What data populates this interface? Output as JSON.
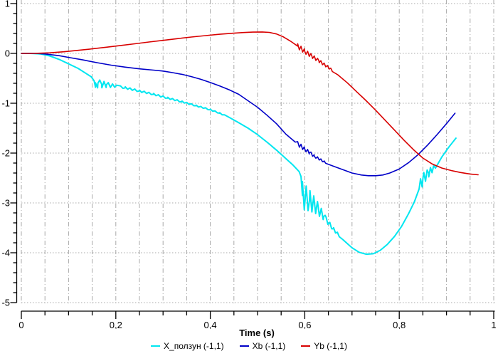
{
  "chart_data": {
    "type": "line",
    "title": "",
    "xlabel": "Time (s)",
    "background": "#ffffff",
    "axis_color": "#000000",
    "grid_color": "#a9a9a9",
    "legend_position": "bottom-center",
    "grid": {
      "vertical_style": "dash-dot",
      "horizontal_style": "dotted"
    },
    "x_axis": {
      "range": [
        0,
        1
      ],
      "minor_step": 0.05,
      "major_ticks": [
        {
          "v": 0,
          "label": "0"
        },
        {
          "v": 0.2,
          "label": "0,2"
        },
        {
          "v": 0.4,
          "label": "0,4"
        },
        {
          "v": 0.6,
          "label": "0,6"
        },
        {
          "v": 0.8,
          "label": "0,8"
        },
        {
          "v": 1,
          "label": "1"
        }
      ]
    },
    "y_axis": {
      "range": [
        -5,
        1
      ],
      "minor_step": 0.2,
      "major_ticks": [
        {
          "v": 1,
          "label": "1"
        },
        {
          "v": 0,
          "label": "0"
        },
        {
          "v": -1,
          "label": "-1"
        },
        {
          "v": -2,
          "label": "-2"
        },
        {
          "v": -3,
          "label": "-3"
        },
        {
          "v": -4,
          "label": "-4"
        },
        {
          "v": -5,
          "label": "-5"
        }
      ]
    },
    "series": [
      {
        "name": "X_ползун (-1,1)",
        "color": "#00e6f0",
        "width": 2,
        "points": [
          [
            0,
            0
          ],
          [
            0.02,
            0
          ],
          [
            0.04,
            -0.01
          ],
          [
            0.06,
            -0.05
          ],
          [
            0.08,
            -0.12
          ],
          [
            0.1,
            -0.21
          ],
          [
            0.12,
            -0.3
          ],
          [
            0.135,
            -0.39
          ],
          [
            0.148,
            -0.47
          ],
          [
            0.154,
            -0.55
          ],
          [
            0.157,
            -0.68
          ],
          [
            0.162,
            -0.6
          ],
          [
            0.17,
            -0.62
          ],
          [
            0.18,
            -0.63
          ],
          [
            0.2,
            -0.655
          ],
          [
            0.22,
            -0.69
          ],
          [
            0.25,
            -0.755
          ],
          [
            0.28,
            -0.82
          ],
          [
            0.31,
            -0.895
          ],
          [
            0.34,
            -0.97
          ],
          [
            0.37,
            -1.05
          ],
          [
            0.4,
            -1.13
          ],
          [
            0.42,
            -1.2
          ],
          [
            0.44,
            -1.285
          ],
          [
            0.46,
            -1.39
          ],
          [
            0.48,
            -1.5
          ],
          [
            0.5,
            -1.63
          ],
          [
            0.52,
            -1.78
          ],
          [
            0.54,
            -1.94
          ],
          [
            0.56,
            -2.11
          ],
          [
            0.575,
            -2.24
          ],
          [
            0.588,
            -2.37
          ],
          [
            0.592,
            -2.47
          ],
          [
            0.595,
            -2.85
          ],
          [
            0.61,
            -2.95
          ],
          [
            0.625,
            -3.08
          ],
          [
            0.64,
            -3.27
          ],
          [
            0.66,
            -3.52
          ],
          [
            0.68,
            -3.73
          ],
          [
            0.7,
            -3.9
          ],
          [
            0.715,
            -3.99
          ],
          [
            0.73,
            -4.03
          ],
          [
            0.745,
            -4.02
          ],
          [
            0.76,
            -3.95
          ],
          [
            0.775,
            -3.83
          ],
          [
            0.79,
            -3.67
          ],
          [
            0.805,
            -3.47
          ],
          [
            0.82,
            -3.21
          ],
          [
            0.832,
            -2.98
          ],
          [
            0.842,
            -2.72
          ],
          [
            0.85,
            -2.52
          ],
          [
            0.862,
            -2.4
          ],
          [
            0.875,
            -2.28
          ],
          [
            0.89,
            -2.08
          ],
          [
            0.905,
            -1.88
          ],
          [
            0.92,
            -1.7
          ]
        ],
        "ringing": [
          {
            "t0": 0.157,
            "t1": 0.205,
            "amp0": 0.09,
            "amp1": 0.015,
            "period": 0.009
          },
          {
            "t0": 0.21,
            "t1": 0.43,
            "amp0": 0.02,
            "amp1": 0.01,
            "period": 0.01
          },
          {
            "t0": 0.595,
            "t1": 0.645,
            "amp0": 0.28,
            "amp1": 0.05,
            "period": 0.008
          },
          {
            "t0": 0.645,
            "t1": 0.675,
            "amp0": 0.05,
            "amp1": 0.02,
            "period": 0.008
          },
          {
            "t0": 0.845,
            "t1": 0.878,
            "amp0": 0.13,
            "amp1": 0.04,
            "period": 0.007
          }
        ]
      },
      {
        "name": "Xb (-1,1)",
        "color": "#0000c8",
        "width": 1.6,
        "points": [
          [
            0,
            0
          ],
          [
            0.03,
            0
          ],
          [
            0.05,
            -0.012
          ],
          [
            0.08,
            -0.045
          ],
          [
            0.1,
            -0.08
          ],
          [
            0.13,
            -0.13
          ],
          [
            0.16,
            -0.185
          ],
          [
            0.19,
            -0.235
          ],
          [
            0.22,
            -0.275
          ],
          [
            0.25,
            -0.31
          ],
          [
            0.28,
            -0.335
          ],
          [
            0.3,
            -0.355
          ],
          [
            0.32,
            -0.385
          ],
          [
            0.34,
            -0.42
          ],
          [
            0.36,
            -0.465
          ],
          [
            0.38,
            -0.52
          ],
          [
            0.4,
            -0.585
          ],
          [
            0.42,
            -0.655
          ],
          [
            0.44,
            -0.73
          ],
          [
            0.46,
            -0.82
          ],
          [
            0.48,
            -0.95
          ],
          [
            0.5,
            -1.08
          ],
          [
            0.52,
            -1.24
          ],
          [
            0.54,
            -1.41
          ],
          [
            0.56,
            -1.62
          ],
          [
            0.58,
            -1.78
          ],
          [
            0.6,
            -1.92
          ],
          [
            0.61,
            -1.99
          ],
          [
            0.62,
            -2.06
          ],
          [
            0.64,
            -2.17
          ],
          [
            0.66,
            -2.26
          ],
          [
            0.68,
            -2.33
          ],
          [
            0.7,
            -2.4
          ],
          [
            0.72,
            -2.44
          ],
          [
            0.735,
            -2.455
          ],
          [
            0.75,
            -2.455
          ],
          [
            0.765,
            -2.44
          ],
          [
            0.78,
            -2.4
          ],
          [
            0.8,
            -2.32
          ],
          [
            0.82,
            -2.19
          ],
          [
            0.84,
            -2.03
          ],
          [
            0.86,
            -1.84
          ],
          [
            0.88,
            -1.63
          ],
          [
            0.9,
            -1.41
          ],
          [
            0.918,
            -1.2
          ]
        ],
        "ringing": [
          {
            "t0": 0.585,
            "t1": 0.645,
            "amp0": 0.045,
            "amp1": 0.015,
            "period": 0.007
          }
        ]
      },
      {
        "name": "Yb (-1,1)",
        "color": "#d80000",
        "width": 1.6,
        "points": [
          [
            0,
            0
          ],
          [
            0.03,
            0.002
          ],
          [
            0.06,
            0.012
          ],
          [
            0.09,
            0.033
          ],
          [
            0.12,
            0.062
          ],
          [
            0.15,
            0.092
          ],
          [
            0.18,
            0.124
          ],
          [
            0.21,
            0.158
          ],
          [
            0.24,
            0.193
          ],
          [
            0.27,
            0.228
          ],
          [
            0.3,
            0.262
          ],
          [
            0.33,
            0.296
          ],
          [
            0.36,
            0.328
          ],
          [
            0.39,
            0.357
          ],
          [
            0.42,
            0.384
          ],
          [
            0.45,
            0.406
          ],
          [
            0.47,
            0.418
          ],
          [
            0.49,
            0.427
          ],
          [
            0.51,
            0.43
          ],
          [
            0.525,
            0.422
          ],
          [
            0.54,
            0.39
          ],
          [
            0.555,
            0.33
          ],
          [
            0.57,
            0.245
          ],
          [
            0.585,
            0.145
          ],
          [
            0.6,
            0.04
          ],
          [
            0.615,
            -0.055
          ],
          [
            0.63,
            -0.15
          ],
          [
            0.65,
            -0.28
          ],
          [
            0.67,
            -0.43
          ],
          [
            0.69,
            -0.59
          ],
          [
            0.71,
            -0.77
          ],
          [
            0.73,
            -0.95
          ],
          [
            0.75,
            -1.14
          ],
          [
            0.77,
            -1.34
          ],
          [
            0.79,
            -1.54
          ],
          [
            0.81,
            -1.74
          ],
          [
            0.83,
            -1.93
          ],
          [
            0.85,
            -2.1
          ],
          [
            0.87,
            -2.22
          ],
          [
            0.89,
            -2.3
          ],
          [
            0.91,
            -2.35
          ],
          [
            0.93,
            -2.39
          ],
          [
            0.95,
            -2.42
          ],
          [
            0.967,
            -2.435
          ]
        ],
        "ringing": [
          {
            "t0": 0.585,
            "t1": 0.66,
            "amp0": 0.05,
            "amp1": 0.02,
            "period": 0.007
          }
        ]
      }
    ]
  }
}
